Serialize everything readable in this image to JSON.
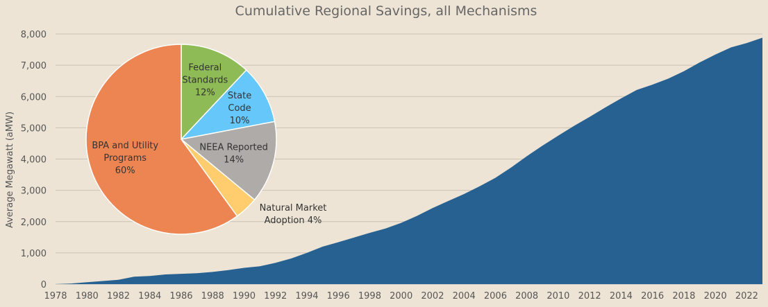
{
  "chart_data": [
    {
      "type": "area",
      "title": "Cumulative Regional Savings, all Mechanisms",
      "xlabel": "",
      "ylabel": "Average Megawatt (aMW)",
      "xlim": [
        1978,
        2023
      ],
      "ylim": [
        0,
        8000
      ],
      "grid": true,
      "x_ticks": [
        1978,
        1980,
        1982,
        1984,
        1986,
        1988,
        1990,
        1992,
        1994,
        1996,
        1998,
        2000,
        2002,
        2004,
        2006,
        2008,
        2010,
        2012,
        2014,
        2016,
        2018,
        2020,
        2022
      ],
      "y_ticks": [
        0,
        1000,
        2000,
        3000,
        4000,
        5000,
        6000,
        7000,
        8000
      ],
      "y_tick_labels": [
        "0",
        "1,000",
        "2,000",
        "3,000",
        "4,000",
        "5,000",
        "6,000",
        "7,000",
        "8,000"
      ],
      "color": "#276191",
      "x": [
        1978,
        1979,
        1980,
        1981,
        1982,
        1983,
        1984,
        1985,
        1986,
        1987,
        1988,
        1989,
        1990,
        1991,
        1992,
        1993,
        1994,
        1995,
        1996,
        1997,
        1998,
        1999,
        2000,
        2001,
        2002,
        2003,
        2004,
        2005,
        2006,
        2007,
        2008,
        2009,
        2010,
        2011,
        2012,
        2013,
        2014,
        2015,
        2016,
        2017,
        2018,
        2019,
        2020,
        2021,
        2022,
        2023
      ],
      "values": [
        0,
        20,
        60,
        100,
        140,
        240,
        260,
        310,
        330,
        350,
        390,
        450,
        520,
        570,
        680,
        820,
        1000,
        1200,
        1340,
        1490,
        1640,
        1780,
        1960,
        2180,
        2430,
        2660,
        2880,
        3130,
        3400,
        3730,
        4090,
        4430,
        4750,
        5060,
        5350,
        5650,
        5940,
        6210,
        6380,
        6570,
        6810,
        7090,
        7340,
        7570,
        7710,
        7880
      ]
    },
    {
      "type": "pie",
      "slices": [
        {
          "name": "Federal Standards",
          "value": 12,
          "label_lines": [
            "Federal",
            "Standards",
            "12%"
          ],
          "color": "#8fbb57"
        },
        {
          "name": "State Code",
          "value": 10,
          "label_lines": [
            "State",
            "Code",
            "10%"
          ],
          "color": "#66c8fa"
        },
        {
          "name": "NEEA Reported",
          "value": 14,
          "label_lines": [
            "NEEA Reported",
            "14%"
          ],
          "color": "#aeaba8"
        },
        {
          "name": "Natural Market Adoption",
          "value": 4,
          "label_lines": [
            "Natural Market",
            "Adoption 4%"
          ],
          "color": "#ffcd6e"
        },
        {
          "name": "BPA and Utility Programs",
          "value": 60,
          "label_lines": [
            "BPA and Utility",
            "Programs",
            "60%"
          ],
          "color": "#ed8553"
        }
      ]
    }
  ]
}
